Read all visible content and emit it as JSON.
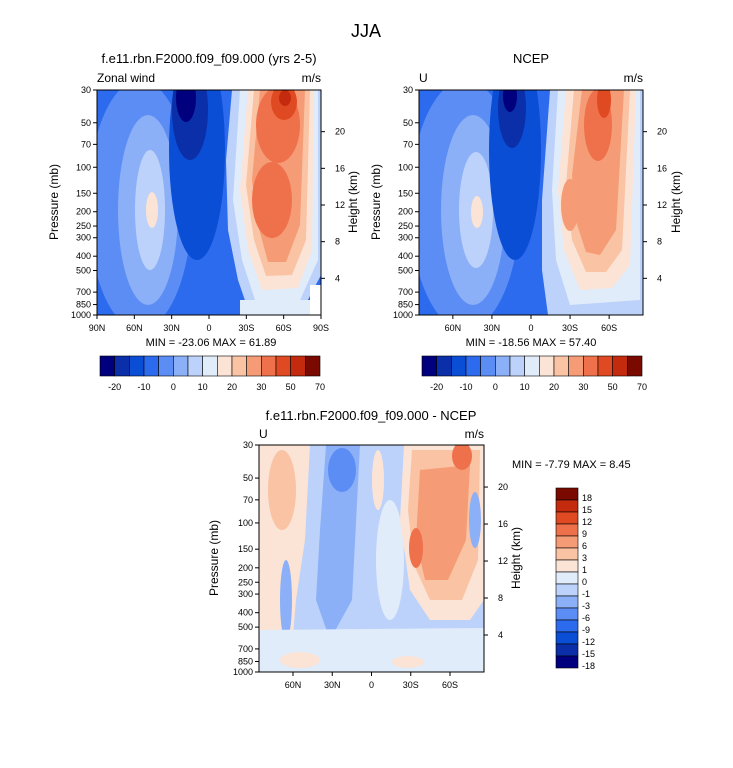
{
  "figure": {
    "suptitle": "JJA"
  },
  "colors": {
    "panels_1_2": [
      "#00007f",
      "#0a2fa8",
      "#0b4ed6",
      "#2d6bee",
      "#5b8df5",
      "#8cb0f7",
      "#bcd2fa",
      "#e1ecfb",
      "#fbe3d6",
      "#f9c3a4",
      "#f59c76",
      "#ef714b",
      "#e04a22",
      "#c42a0d",
      "#7a0a00"
    ],
    "diff": [
      "#00007f",
      "#0a2fa8",
      "#0b4ed6",
      "#2d6bee",
      "#5b8df5",
      "#8cb0f7",
      "#bcd2fa",
      "#e1ecfb",
      "#fbe3d6",
      "#f9c3a4",
      "#f59c76",
      "#ef714b",
      "#e04a22",
      "#c42a0d",
      "#7a0a00"
    ]
  },
  "chart_data": [
    {
      "type": "heatmap",
      "title": "f.e11.rbn.F2000.f09_f09.000 (yrs 2-5)",
      "left_string": "Zonal wind",
      "right_string": "m/s",
      "ylabel": "Pressure (mb)",
      "ylabel_right": "Height (km)",
      "x_ticks": [
        "90N",
        "60N",
        "30N",
        "0",
        "30S",
        "60S",
        "90S"
      ],
      "y_ticks": [
        "30",
        "50",
        "70",
        "100",
        "150",
        "200",
        "250",
        "300",
        "400",
        "500",
        "700",
        "850",
        "1000"
      ],
      "y_ticks_right": [
        "20",
        "16",
        "12",
        "8",
        "4"
      ],
      "min_max_text": "MIN = -23.06  MAX =  61.89",
      "colorbar_labels": [
        "-20",
        "-10",
        "0",
        "10",
        "20",
        "30",
        "50",
        "70"
      ]
    },
    {
      "type": "heatmap",
      "title": "NCEP",
      "left_string": "U",
      "right_string": "m/s",
      "ylabel": "Pressure (mb)",
      "ylabel_right": "Height (km)",
      "x_ticks": [
        "60N",
        "30N",
        "0",
        "30S",
        "60S"
      ],
      "y_ticks": [
        "30",
        "50",
        "70",
        "100",
        "150",
        "200",
        "250",
        "300",
        "400",
        "500",
        "700",
        "850",
        "1000"
      ],
      "y_ticks_right": [
        "20",
        "16",
        "12",
        "8",
        "4"
      ],
      "min_max_text": "MIN = -18.56  MAX =  57.40",
      "colorbar_labels": [
        "-20",
        "-10",
        "0",
        "10",
        "20",
        "30",
        "50",
        "70"
      ]
    },
    {
      "type": "heatmap",
      "title": "f.e11.rbn.F2000.f09_f09.000 - NCEP",
      "left_string": "U",
      "right_string": "m/s",
      "ylabel": "Pressure (mb)",
      "ylabel_right": "Height (km)",
      "x_ticks": [
        "60N",
        "30N",
        "0",
        "30S",
        "60S"
      ],
      "y_ticks": [
        "30",
        "50",
        "70",
        "100",
        "150",
        "200",
        "250",
        "300",
        "400",
        "500",
        "700",
        "850",
        "1000"
      ],
      "y_ticks_right": [
        "20",
        "16",
        "12",
        "8",
        "4"
      ],
      "min_max_text": "MIN =  -7.79  MAX =   8.45",
      "colorbar_labels": [
        "18",
        "15",
        "12",
        "9",
        "6",
        "3",
        "1",
        "0",
        "-1",
        "-3",
        "-6",
        "-9",
        "-12",
        "-15",
        "-18"
      ]
    }
  ]
}
